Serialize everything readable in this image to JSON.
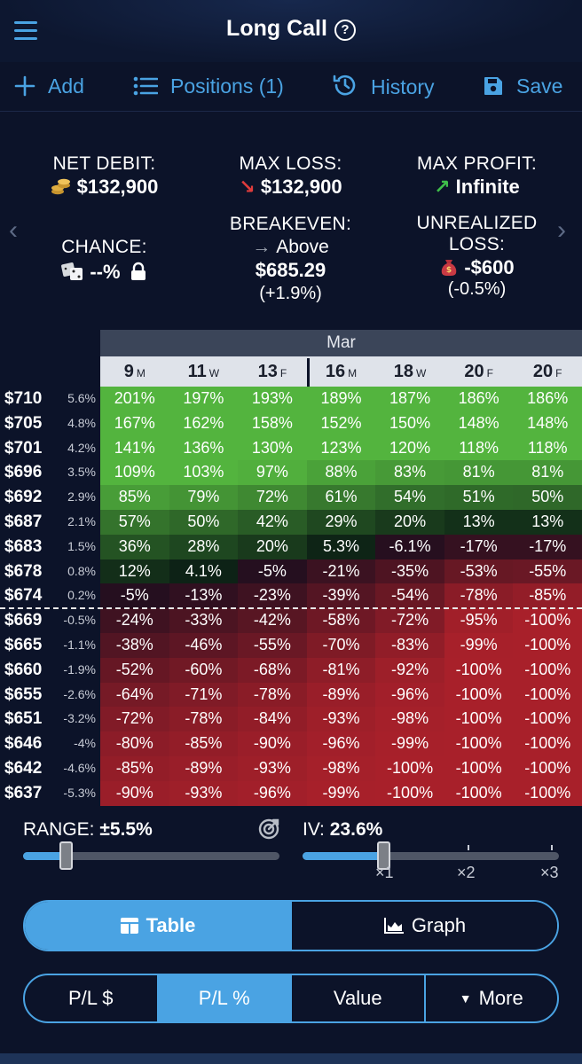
{
  "header": {
    "title": "Long Call",
    "help": "?"
  },
  "toolbar": {
    "add": "Add",
    "positions": "Positions (1)",
    "history": "History",
    "save": "Save"
  },
  "stats": {
    "net_debit": {
      "label": "NET DEBIT:",
      "value": "$132,900"
    },
    "max_loss": {
      "label": "MAX LOSS:",
      "value": "$132,900"
    },
    "max_profit": {
      "label": "MAX PROFIT:",
      "value": "Infinite"
    },
    "chance": {
      "label": "CHANCE:",
      "value": "--%"
    },
    "breakeven": {
      "label": "BREAKEVEN:",
      "direction": "Above",
      "value": "$685.29",
      "change": "(+1.9%)"
    },
    "unrealized": {
      "label_1": "UNREALIZED",
      "label_2": "LOSS:",
      "value": "-$600",
      "change": "(-0.5%)"
    }
  },
  "grid": {
    "month": "Mar",
    "dates": [
      {
        "day": "9",
        "wd": "M"
      },
      {
        "day": "11",
        "wd": "W"
      },
      {
        "day": "13",
        "wd": "F"
      },
      {
        "day": "16",
        "wd": "M"
      },
      {
        "day": "18",
        "wd": "W"
      },
      {
        "day": "20",
        "wd": "F"
      },
      {
        "day": "20",
        "wd": "F"
      }
    ],
    "rows": [
      {
        "price": "$710",
        "pct": "5.6%",
        "cells": [
          "201%",
          "197%",
          "193%",
          "189%",
          "187%",
          "186%",
          "186%"
        ],
        "vals": [
          201,
          197,
          193,
          189,
          187,
          186,
          186
        ]
      },
      {
        "price": "$705",
        "pct": "4.8%",
        "cells": [
          "167%",
          "162%",
          "158%",
          "152%",
          "150%",
          "148%",
          "148%"
        ],
        "vals": [
          167,
          162,
          158,
          152,
          150,
          148,
          148
        ]
      },
      {
        "price": "$701",
        "pct": "4.2%",
        "cells": [
          "141%",
          "136%",
          "130%",
          "123%",
          "120%",
          "118%",
          "118%"
        ],
        "vals": [
          141,
          136,
          130,
          123,
          120,
          118,
          118
        ]
      },
      {
        "price": "$696",
        "pct": "3.5%",
        "cells": [
          "109%",
          "103%",
          "97%",
          "88%",
          "83%",
          "81%",
          "81%"
        ],
        "vals": [
          109,
          103,
          97,
          88,
          83,
          81,
          81
        ]
      },
      {
        "price": "$692",
        "pct": "2.9%",
        "cells": [
          "85%",
          "79%",
          "72%",
          "61%",
          "54%",
          "51%",
          "50%"
        ],
        "vals": [
          85,
          79,
          72,
          61,
          54,
          51,
          50
        ]
      },
      {
        "price": "$687",
        "pct": "2.1%",
        "cells": [
          "57%",
          "50%",
          "42%",
          "29%",
          "20%",
          "13%",
          "13%"
        ],
        "vals": [
          57,
          50,
          42,
          29,
          20,
          13,
          13
        ]
      },
      {
        "price": "$683",
        "pct": "1.5%",
        "cells": [
          "36%",
          "28%",
          "20%",
          "5.3%",
          "-6.1%",
          "-17%",
          "-17%"
        ],
        "vals": [
          36,
          28,
          20,
          5.3,
          -6.1,
          -17,
          -17
        ]
      },
      {
        "price": "$678",
        "pct": "0.8%",
        "cells": [
          "12%",
          "4.1%",
          "-5%",
          "-21%",
          "-35%",
          "-53%",
          "-55%"
        ],
        "vals": [
          12,
          4.1,
          -5,
          -21,
          -35,
          -53,
          -55
        ]
      },
      {
        "price": "$674",
        "pct": "0.2%",
        "cells": [
          "-5%",
          "-13%",
          "-23%",
          "-39%",
          "-54%",
          "-78%",
          "-85%"
        ],
        "vals": [
          -5,
          -13,
          -23,
          -39,
          -54,
          -78,
          -85
        ]
      },
      {
        "price": "$669",
        "pct": "-0.5%",
        "cells": [
          "-24%",
          "-33%",
          "-42%",
          "-58%",
          "-72%",
          "-95%",
          "-100%"
        ],
        "vals": [
          -24,
          -33,
          -42,
          -58,
          -72,
          -95,
          -100
        ]
      },
      {
        "price": "$665",
        "pct": "-1.1%",
        "cells": [
          "-38%",
          "-46%",
          "-55%",
          "-70%",
          "-83%",
          "-99%",
          "-100%"
        ],
        "vals": [
          -38,
          -46,
          -55,
          -70,
          -83,
          -99,
          -100
        ]
      },
      {
        "price": "$660",
        "pct": "-1.9%",
        "cells": [
          "-52%",
          "-60%",
          "-68%",
          "-81%",
          "-92%",
          "-100%",
          "-100%"
        ],
        "vals": [
          -52,
          -60,
          -68,
          -81,
          -92,
          -100,
          -100
        ]
      },
      {
        "price": "$655",
        "pct": "-2.6%",
        "cells": [
          "-64%",
          "-71%",
          "-78%",
          "-89%",
          "-96%",
          "-100%",
          "-100%"
        ],
        "vals": [
          -64,
          -71,
          -78,
          -89,
          -96,
          -100,
          -100
        ]
      },
      {
        "price": "$651",
        "pct": "-3.2%",
        "cells": [
          "-72%",
          "-78%",
          "-84%",
          "-93%",
          "-98%",
          "-100%",
          "-100%"
        ],
        "vals": [
          -72,
          -78,
          -84,
          -93,
          -98,
          -100,
          -100
        ]
      },
      {
        "price": "$646",
        "pct": "-4%",
        "cells": [
          "-80%",
          "-85%",
          "-90%",
          "-96%",
          "-99%",
          "-100%",
          "-100%"
        ],
        "vals": [
          -80,
          -85,
          -90,
          -96,
          -99,
          -100,
          -100
        ]
      },
      {
        "price": "$642",
        "pct": "-4.6%",
        "cells": [
          "-85%",
          "-89%",
          "-93%",
          "-98%",
          "-100%",
          "-100%",
          "-100%"
        ],
        "vals": [
          -85,
          -89,
          -93,
          -98,
          -100,
          -100,
          -100
        ]
      },
      {
        "price": "$637",
        "pct": "-5.3%",
        "cells": [
          "-90%",
          "-93%",
          "-96%",
          "-99%",
          "-100%",
          "-100%",
          "-100%"
        ],
        "vals": [
          -90,
          -93,
          -96,
          -99,
          -100,
          -100,
          -100
        ]
      }
    ]
  },
  "controls": {
    "range": {
      "label": "RANGE:",
      "value": "±5.5%",
      "fraction": 0.17
    },
    "iv": {
      "label": "IV:",
      "value": "23.6%",
      "ticks": [
        "×1",
        "×2",
        "×3"
      ],
      "fraction": 0.32
    }
  },
  "view_toggle": {
    "table": "Table",
    "graph": "Graph"
  },
  "metric_toggle": {
    "pl_dollar": "P/L $",
    "pl_pct": "P/L %",
    "value": "Value",
    "more": "More"
  },
  "colors": {
    "accent": "#4aa3e3",
    "green_max": "#53b43e",
    "red_max": "#a5202a",
    "bg": "#0c1329"
  }
}
